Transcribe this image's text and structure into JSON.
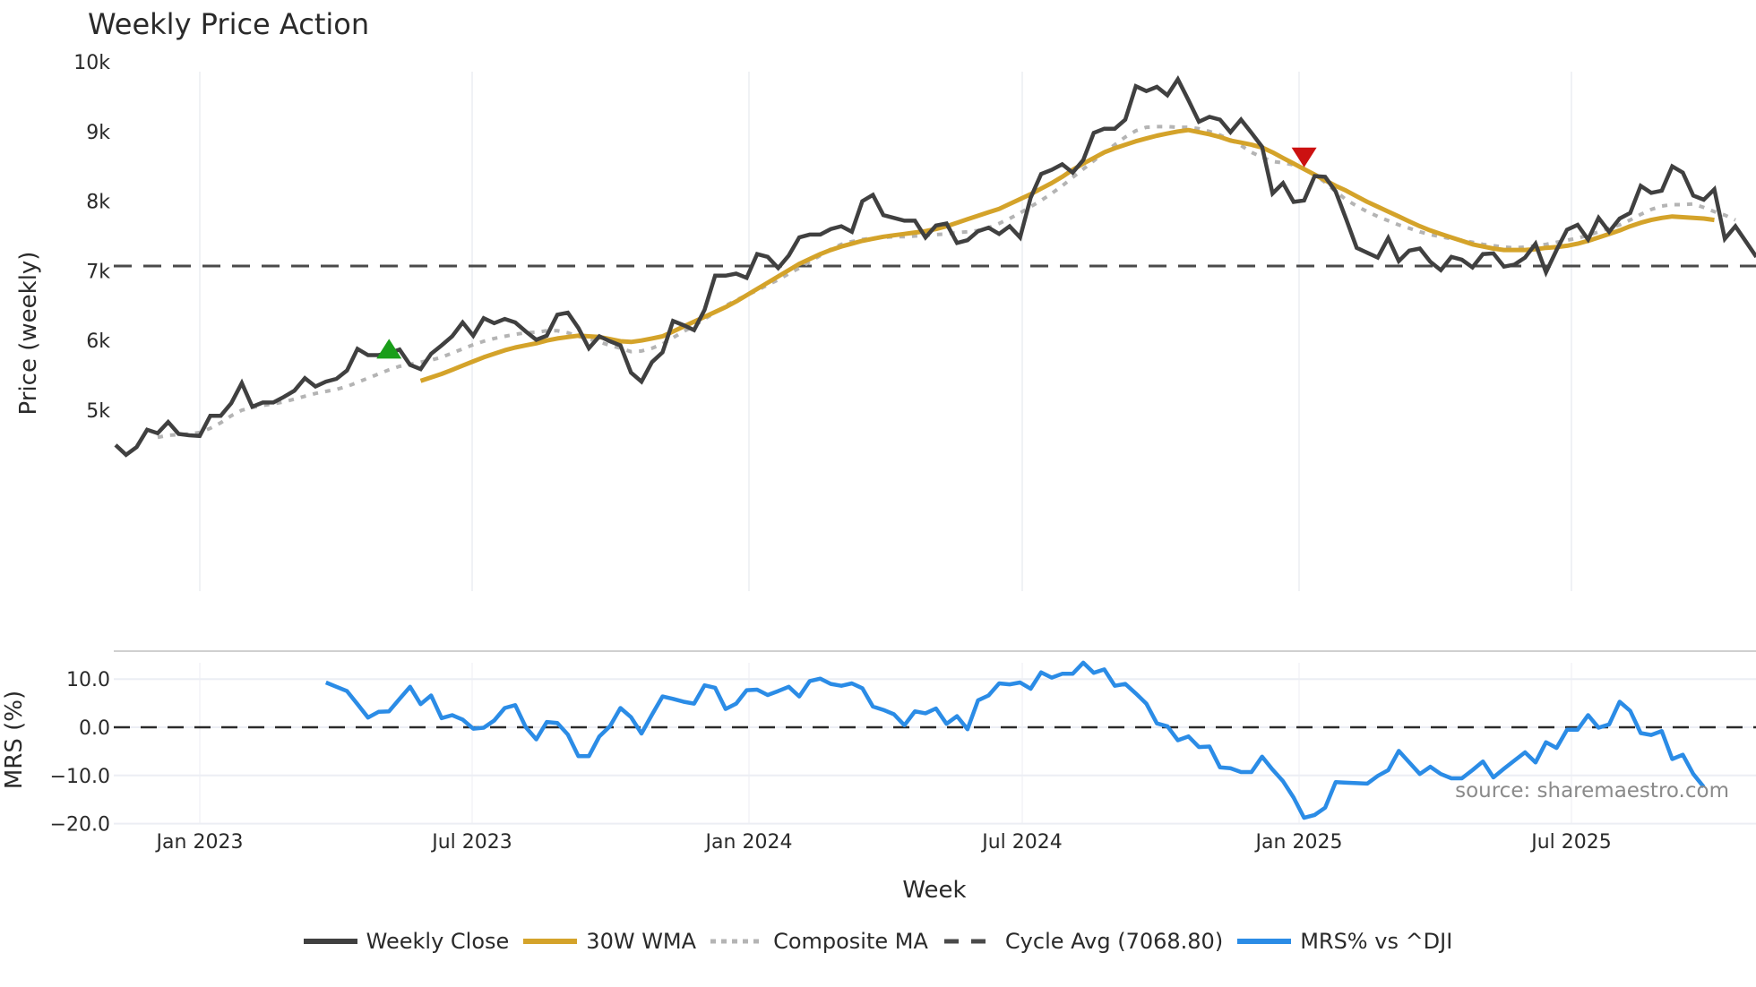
{
  "title": "Weekly Price Action",
  "source_label": "source: sharemaestro.com",
  "colors": {
    "close": "#404040",
    "wma": "#d4a32a",
    "composite": "#b4b4b4",
    "cycle": "#4a4a4a",
    "mrs": "#2b8ce6",
    "buy": "#1a9e1a",
    "sell": "#cc1111"
  },
  "legend": [
    {
      "key": "close",
      "label": "Weekly Close",
      "style": "solid"
    },
    {
      "key": "wma",
      "label": "30W WMA",
      "style": "solid"
    },
    {
      "key": "composite",
      "label": "Composite MA",
      "style": "dotted"
    },
    {
      "key": "cycle",
      "label": "Cycle Avg (7068.80)",
      "style": "dashed"
    },
    {
      "key": "mrs",
      "label": "MRS% vs ^DJI",
      "style": "solid"
    }
  ],
  "chart_data": [
    {
      "type": "line",
      "title": "Weekly Price Action",
      "xlabel": "Week",
      "ylabel": "Price (weekly)",
      "ylim": [
        4100,
        10100
      ],
      "grid": true,
      "legend_position": "bottom",
      "x_ticks": [
        "Jan 2023",
        "Jul 2023",
        "Jan 2024",
        "Jul 2024",
        "Jan 2025",
        "Jul 2025"
      ],
      "y_ticks": [
        "5k",
        "6k",
        "7k",
        "8k",
        "9k",
        "10k"
      ],
      "x_start": "2022-10-24",
      "x_interval": "1 week",
      "hlines": [
        {
          "name": "Cycle Avg",
          "value": 7068.8
        }
      ],
      "markers": [
        {
          "type": "buy",
          "shape": "triangle-up",
          "week_index": 26,
          "value": 5870
        },
        {
          "type": "sell",
          "shape": "triangle-down",
          "week_index": 113,
          "value": 8640
        }
      ],
      "series": [
        {
          "name": "Weekly Close",
          "start_index": 0,
          "values": [
            4500,
            4360,
            4470,
            4720,
            4670,
            4830,
            4660,
            4640,
            4630,
            4920,
            4920,
            5100,
            5390,
            5050,
            5110,
            5110,
            5190,
            5280,
            5460,
            5340,
            5410,
            5450,
            5570,
            5880,
            5790,
            5790,
            5820,
            5870,
            5650,
            5590,
            5810,
            5930,
            6060,
            6260,
            6070,
            6320,
            6250,
            6310,
            6260,
            6130,
            6010,
            6070,
            6370,
            6400,
            6180,
            5890,
            6060,
            5990,
            5930,
            5540,
            5410,
            5690,
            5830,
            6280,
            6220,
            6150,
            6440,
            6930,
            6930,
            6960,
            6900,
            7240,
            7200,
            7040,
            7220,
            7480,
            7520,
            7520,
            7600,
            7640,
            7560,
            8000,
            8090,
            7800,
            7760,
            7720,
            7720,
            7480,
            7650,
            7680,
            7400,
            7440,
            7570,
            7620,
            7530,
            7640,
            7480,
            8050,
            8390,
            8450,
            8530,
            8410,
            8590,
            8980,
            9040,
            9040,
            9170,
            9650,
            9580,
            9640,
            9520,
            9750,
            9450,
            9140,
            9210,
            9170,
            8990,
            9170,
            8980,
            8780,
            8110,
            8260,
            7990,
            8010,
            8360,
            8350,
            8140,
            7740,
            7330,
            7260,
            7190,
            7470,
            7140,
            7290,
            7320,
            7130,
            7010,
            7200,
            7160,
            7050,
            7240,
            7250,
            7060,
            7090,
            7190,
            7390,
            6980,
            7300,
            7590,
            7660,
            7450,
            7760,
            7560,
            7750,
            7830,
            8220,
            8120,
            8150,
            8500,
            8410,
            8080,
            8020,
            8170,
            7460,
            7640,
            7420,
            7200
          ]
        },
        {
          "name": "30W WMA",
          "start_index": 29,
          "values": [
            5420,
            5470,
            5520,
            5580,
            5640,
            5700,
            5760,
            5810,
            5860,
            5900,
            5930,
            5960,
            6000,
            6030,
            6050,
            6070,
            6060,
            6050,
            6020,
            5990,
            5980,
            6000,
            6030,
            6060,
            6130,
            6200,
            6270,
            6340,
            6410,
            6480,
            6560,
            6650,
            6740,
            6830,
            6920,
            7010,
            7100,
            7170,
            7240,
            7300,
            7350,
            7390,
            7430,
            7460,
            7490,
            7510,
            7530,
            7550,
            7570,
            7600,
            7640,
            7690,
            7740,
            7790,
            7840,
            7890,
            7960,
            8030,
            8100,
            8180,
            8260,
            8350,
            8450,
            8540,
            8620,
            8700,
            8760,
            8810,
            8860,
            8900,
            8940,
            8970,
            9000,
            9020,
            8990,
            8960,
            8920,
            8870,
            8840,
            8810,
            8770,
            8700,
            8620,
            8540,
            8460,
            8380,
            8300,
            8220,
            8150,
            8070,
            7990,
            7920,
            7850,
            7780,
            7710,
            7640,
            7580,
            7530,
            7480,
            7430,
            7380,
            7350,
            7320,
            7300,
            7300,
            7300,
            7310,
            7330,
            7340,
            7360,
            7390,
            7430,
            7480,
            7530,
            7580,
            7640,
            7690,
            7730,
            7760,
            7780,
            7770,
            7760,
            7750,
            7730
          ]
        },
        {
          "name": "Composite MA",
          "start_index": 4,
          "values": [
            4610,
            4640,
            4650,
            4660,
            4680,
            4740,
            4820,
            4920,
            5000,
            5040,
            5070,
            5090,
            5120,
            5160,
            5200,
            5240,
            5270,
            5300,
            5340,
            5400,
            5460,
            5520,
            5580,
            5630,
            5660,
            5690,
            5720,
            5760,
            5820,
            5880,
            5940,
            5990,
            6030,
            6060,
            6090,
            6110,
            6120,
            6140,
            6140,
            6110,
            6060,
            6020,
            5980,
            5930,
            5890,
            5840,
            5850,
            5890,
            5950,
            6040,
            6130,
            6210,
            6310,
            6400,
            6500,
            6580,
            6650,
            6720,
            6800,
            6870,
            6960,
            7040,
            7130,
            7220,
            7310,
            7380,
            7420,
            7450,
            7470,
            7480,
            7490,
            7490,
            7500,
            7510,
            7520,
            7530,
            7550,
            7560,
            7580,
            7620,
            7680,
            7750,
            7830,
            7920,
            8010,
            8110,
            8220,
            8340,
            8460,
            8580,
            8700,
            8810,
            8920,
            9010,
            9060,
            9070,
            9070,
            9060,
            9060,
            9040,
            9000,
            8950,
            8880,
            8800,
            8700,
            8630,
            8570,
            8550,
            8520,
            8470,
            8380,
            8270,
            8140,
            8020,
            7930,
            7850,
            7780,
            7720,
            7660,
            7610,
            7560,
            7520,
            7490,
            7460,
            7440,
            7410,
            7380,
            7360,
            7340,
            7330,
            7340,
            7360,
            7380,
            7410,
            7440,
            7470,
            7510,
            7560,
            7610,
            7660,
            7730,
            7810,
            7880,
            7930,
            7950,
            7950,
            7960,
            7910,
            7850,
            7800,
            7730
          ]
        },
        {
          "name": "MRS% vs ^DJI",
          "start_index": 20,
          "axis": "mrs",
          "values": [
            9.3,
            8.4,
            7.5,
            4.8,
            2.0,
            3.2,
            3.3,
            5.9,
            8.4,
            4.8,
            6.6,
            1.9,
            2.5,
            1.6,
            -0.3,
            -0.1,
            1.4,
            4.0,
            4.6,
            0.0,
            -2.5,
            1.1,
            0.9,
            -1.5,
            -6.0,
            -6.0,
            -1.9,
            0.2,
            4.0,
            2.1,
            -1.3,
            2.6,
            6.4,
            5.9,
            5.3,
            4.9,
            8.7,
            8.2,
            3.8,
            4.9,
            7.7,
            7.8,
            6.7,
            7.5,
            8.4,
            6.4,
            9.6,
            10.1,
            9.0,
            8.6,
            9.1,
            8.1,
            4.3,
            3.6,
            2.7,
            0.4,
            3.3,
            2.9,
            3.9,
            0.7,
            2.3,
            -0.4,
            5.6,
            6.6,
            9.1,
            8.9,
            9.3,
            8.0,
            11.4,
            10.3,
            11.1,
            11.1,
            13.4,
            11.3,
            12.0,
            8.6,
            9.0,
            7.0,
            4.9,
            0.8,
            0.2,
            -2.7,
            -1.9,
            -4.1,
            -4.0,
            -8.3,
            -8.5,
            -9.3,
            -9.3,
            -6.1,
            -8.8,
            -11.2,
            -14.6,
            -18.8,
            -18.2,
            -16.7,
            -11.4,
            -11.5,
            -11.6,
            -11.7,
            -10.1,
            -8.9,
            -4.9,
            -7.3,
            -9.7,
            -8.2,
            -9.7,
            -10.6,
            -10.6,
            -8.9,
            -7.1,
            -10.4,
            -8.6,
            -6.9,
            -5.2,
            -7.3,
            -3.1,
            -4.3,
            -0.5,
            -0.5,
            2.5,
            -0.1,
            0.6,
            5.3,
            3.4,
            -1.2,
            -1.6,
            -0.8,
            -6.6,
            -5.7,
            -9.7,
            -12.4
          ]
        }
      ],
      "mrs_panel": {
        "ylabel": "MRS (%)",
        "ylim": [
          -20,
          14
        ],
        "y_ticks": [
          "10.0",
          "0.0",
          "−10.0",
          "−20.0"
        ],
        "hlines": [
          {
            "name": "zero",
            "value": 0
          }
        ]
      }
    }
  ]
}
